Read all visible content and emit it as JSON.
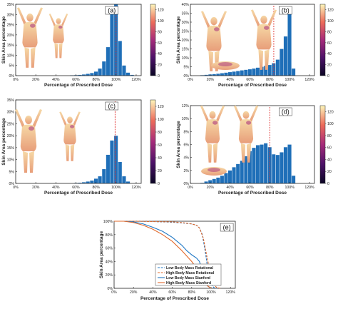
{
  "figure": {
    "panels": [
      {
        "id": "a",
        "label": "(a)",
        "xlabel": "Percentage of Prescribed Dose",
        "ylabel": "Skin Area percentage",
        "yticks": [
          "0%",
          "5%",
          "10%",
          "15%",
          "20%",
          "25%",
          "30%",
          "35%"
        ],
        "xticks": [
          "0%",
          "20%",
          "40%",
          "60%",
          "80%",
          "100%",
          "120%"
        ],
        "colorbar_ticks": [
          "0",
          "20",
          "40",
          "60",
          "80",
          "100",
          "120"
        ]
      },
      {
        "id": "b",
        "label": "(b)",
        "xlabel": "Percentage of Prescribed Dose",
        "ylabel": "Skin Area percentage",
        "yticks": [
          "0%",
          "5%",
          "10%",
          "15%",
          "20%",
          "25%",
          "30%",
          "35%",
          "40%"
        ],
        "xticks": [
          "0%",
          "20%",
          "40%",
          "60%",
          "80%",
          "100%",
          "120%"
        ],
        "colorbar_ticks": [
          "0",
          "20",
          "40",
          "60",
          "80",
          "100",
          "120"
        ]
      },
      {
        "id": "c",
        "label": "(c)",
        "xlabel": "Percentage of Prescribed Dose",
        "ylabel": "Skin Area percentage",
        "yticks": [
          "0%",
          "5%",
          "10%",
          "15%",
          "20%",
          "25%",
          "30%",
          "35%"
        ],
        "xticks": [
          "0%",
          "20%",
          "40%",
          "60%",
          "80%",
          "100%",
          "120%"
        ],
        "colorbar_ticks": [
          "0",
          "20",
          "40",
          "60",
          "80",
          "100",
          "120"
        ]
      },
      {
        "id": "d",
        "label": "(d)",
        "xlabel": "Percentage of Prescribed Dose",
        "ylabel": "Skin Area percentage",
        "yticks": [
          "0%",
          "2%",
          "4%",
          "6%",
          "8%",
          "10%",
          "12%"
        ],
        "xticks": [
          "0%",
          "20%",
          "40%",
          "60%",
          "80%",
          "100%",
          "120%"
        ],
        "colorbar_ticks": [
          "0",
          "20",
          "40",
          "60",
          "80",
          "100",
          "120"
        ]
      },
      {
        "id": "e",
        "label": "(e)",
        "xlabel": "Percentage of Prescribed Dose",
        "ylabel": "Skin Area percentage",
        "yticks": [
          "0%",
          "20%",
          "40%",
          "60%",
          "80%",
          "100%"
        ],
        "xticks": [
          "0%",
          "20%",
          "40%",
          "60%",
          "80%",
          "100%",
          "120%"
        ]
      }
    ]
  },
  "colors": {
    "bar": "#1f6fb8",
    "ref_line": "#e0302e",
    "blue": "#1f77c4",
    "orange": "#e2682a"
  },
  "chart_data": [
    {
      "panel": "a",
      "type": "bar",
      "x": [
        56,
        60,
        64,
        68,
        72,
        76,
        80,
        84,
        88,
        92,
        96,
        100,
        104,
        108,
        112,
        116
      ],
      "values": [
        0.2,
        0.3,
        0.4,
        0.6,
        0.9,
        1.3,
        2.0,
        3.5,
        7,
        14,
        32,
        35,
        17,
        5,
        1.5,
        0.4
      ],
      "ylim": [
        0,
        35
      ],
      "xlim": [
        0,
        125
      ],
      "ref_x": 100
    },
    {
      "panel": "b",
      "type": "bar",
      "x": [
        12,
        16,
        20,
        24,
        28,
        32,
        36,
        40,
        44,
        48,
        52,
        56,
        60,
        64,
        68,
        72,
        76,
        80,
        84,
        88,
        92,
        96,
        100,
        104
      ],
      "values": [
        0.3,
        0.5,
        0.7,
        0.9,
        1.1,
        1.4,
        1.7,
        2.0,
        2.3,
        2.6,
        3.0,
        3.3,
        3.6,
        4.0,
        4.5,
        5.0,
        5.5,
        6.0,
        7,
        9,
        15,
        22,
        38,
        4
      ],
      "ylim": [
        0,
        40
      ],
      "xlim": [
        0,
        125
      ],
      "ref_x": 84
    },
    {
      "panel": "c",
      "type": "bar",
      "x": [
        60,
        64,
        68,
        72,
        76,
        80,
        84,
        88,
        92,
        96,
        100,
        104,
        108,
        112
      ],
      "values": [
        0.2,
        0.3,
        0.5,
        0.8,
        1.2,
        2.0,
        3.0,
        6,
        12,
        18,
        20,
        9,
        3,
        0.8
      ],
      "ylim": [
        0,
        35
      ],
      "xlim": [
        0,
        125
      ],
      "ref_x": 99
    },
    {
      "panel": "d",
      "type": "bar",
      "x": [
        12,
        16,
        20,
        24,
        28,
        32,
        36,
        40,
        44,
        48,
        52,
        56,
        60,
        64,
        68,
        72,
        76,
        80,
        84,
        88,
        92,
        96,
        100,
        104
      ],
      "values": [
        0.1,
        0.3,
        0.5,
        0.7,
        0.9,
        1.2,
        1.6,
        2.0,
        2.5,
        3.0,
        3.5,
        4.2,
        5.0,
        5.5,
        5.9,
        6.0,
        6.2,
        5.6,
        4.5,
        4.4,
        4.8,
        5.6,
        6.0,
        1.2
      ],
      "ylim": [
        0,
        12
      ],
      "xlim": [
        0,
        125
      ],
      "ref_x": 80
    },
    {
      "panel": "e",
      "type": "line",
      "xlim": [
        0,
        125
      ],
      "ylim": [
        0,
        100
      ],
      "series": [
        {
          "name": "Low Body Mass Rotational",
          "color": "#1f77c4",
          "dash": true,
          "x": [
            0,
            10,
            20,
            30,
            40,
            50,
            60,
            70,
            80,
            85,
            88,
            91,
            94,
            97,
            100,
            103,
            106
          ],
          "y": [
            100,
            100,
            100,
            99.8,
            99.5,
            99,
            98.5,
            97.5,
            96,
            94,
            90,
            80,
            55,
            25,
            6,
            1,
            0
          ]
        },
        {
          "name": "High Body Mass Rotational",
          "color": "#e2682a",
          "dash": true,
          "x": [
            0,
            10,
            20,
            30,
            40,
            50,
            60,
            70,
            80,
            85,
            88,
            92,
            96,
            100,
            103,
            106,
            110
          ],
          "y": [
            100,
            100,
            100,
            99.8,
            99.5,
            99.2,
            99,
            98,
            96,
            94,
            90,
            75,
            45,
            18,
            5,
            1,
            0
          ]
        },
        {
          "name": "Low Body Mass Stanford",
          "color": "#1f77c4",
          "dash": false,
          "x": [
            0,
            10,
            20,
            30,
            40,
            50,
            60,
            70,
            75,
            80,
            85,
            88,
            91,
            94,
            97,
            100
          ],
          "y": [
            100,
            100,
            99,
            96,
            91,
            85,
            76,
            64,
            56,
            50,
            45,
            40,
            25,
            10,
            3,
            0
          ]
        },
        {
          "name": "High Body Mass Stanford",
          "color": "#e2682a",
          "dash": false,
          "x": [
            0,
            10,
            20,
            30,
            40,
            50,
            60,
            70,
            80,
            85,
            90,
            93,
            96,
            100
          ],
          "y": [
            100,
            100,
            98,
            94,
            88,
            80,
            70,
            56,
            40,
            30,
            18,
            10,
            4,
            0
          ]
        }
      ]
    }
  ]
}
